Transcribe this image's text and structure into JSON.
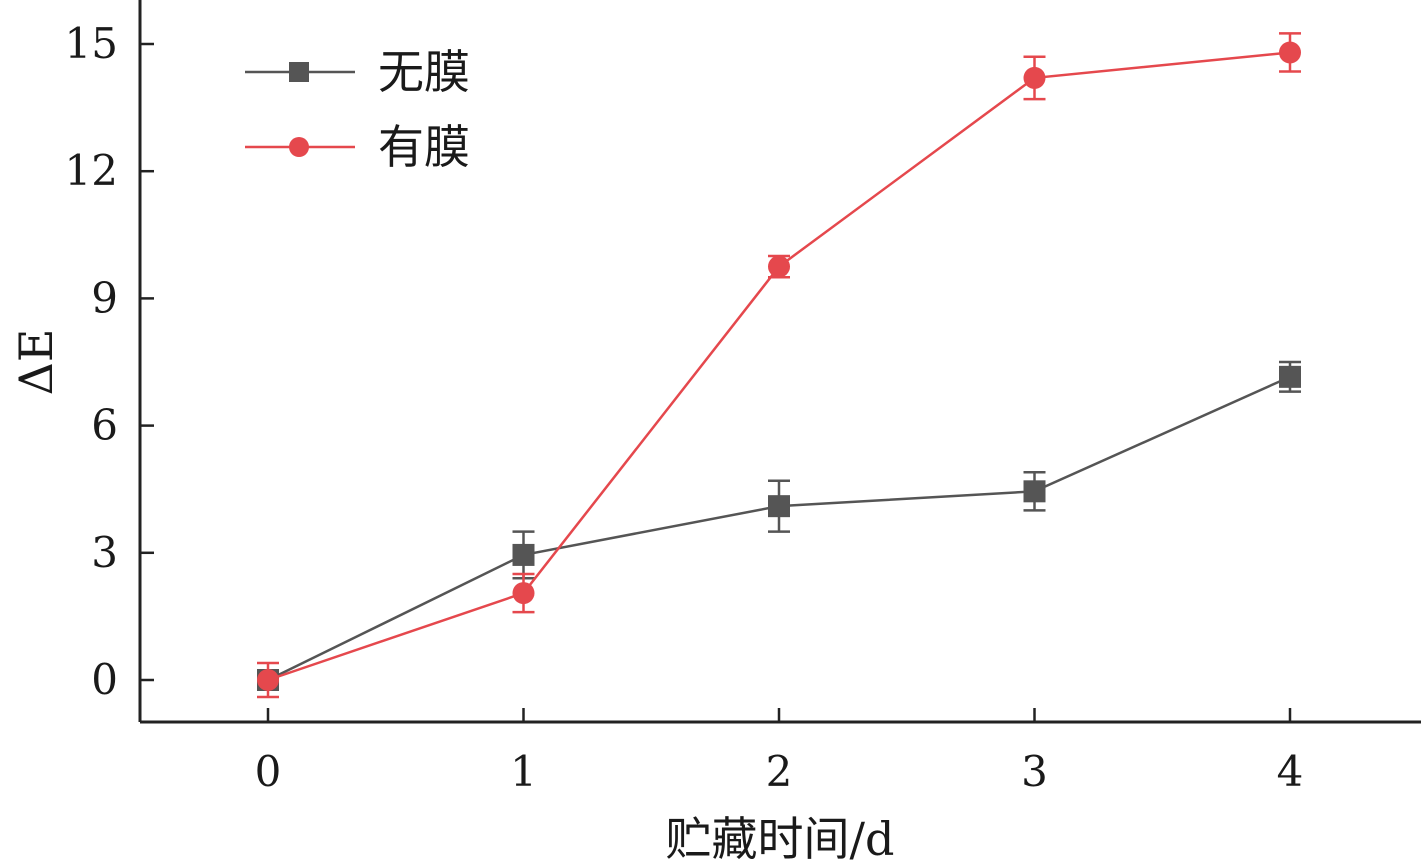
{
  "chart_data": {
    "type": "line",
    "title": "",
    "xlabel": "贮藏时间/d",
    "ylabel": "ΔE",
    "x": [
      0,
      1,
      2,
      3,
      4
    ],
    "xlim": [
      -0.5,
      4.5
    ],
    "ylim": [
      -1,
      16
    ],
    "yticks": [
      0,
      3,
      6,
      9,
      12,
      15
    ],
    "xticks": [
      0,
      1,
      2,
      3,
      4
    ],
    "legend_position": "top-left",
    "grid": false,
    "series": [
      {
        "name": "无膜",
        "color": "#555555",
        "marker": "square",
        "values": [
          0.0,
          2.95,
          4.1,
          4.45,
          7.15
        ],
        "errors": [
          0.0,
          0.55,
          0.6,
          0.45,
          0.35
        ]
      },
      {
        "name": "有膜",
        "color": "#e5484d",
        "marker": "circle",
        "values": [
          0.0,
          2.05,
          9.75,
          14.2,
          14.8
        ],
        "errors": [
          0.4,
          0.45,
          0.25,
          0.5,
          0.45
        ]
      }
    ]
  }
}
